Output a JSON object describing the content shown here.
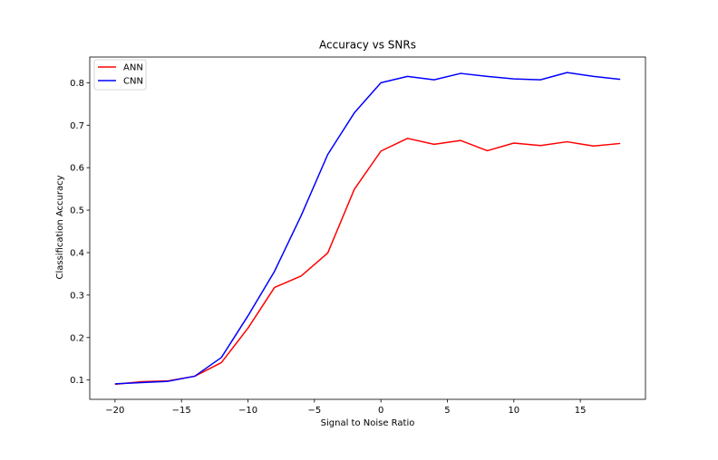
{
  "chart_data": {
    "type": "line",
    "title": "Accuracy vs SNRs",
    "xlabel": "Signal to Noise Ratio",
    "ylabel": "Classification Accuracy",
    "xlim": [
      -21.9,
      19.9
    ],
    "ylim": [
      0.0545,
      0.8605
    ],
    "xticks": [
      -20,
      -15,
      -10,
      -5,
      0,
      5,
      10,
      15
    ],
    "xtick_labels": [
      "−20",
      "−15",
      "−10",
      "−5",
      "0",
      "5",
      "10",
      "15"
    ],
    "yticks": [
      0.1,
      0.2,
      0.3,
      0.4,
      0.5,
      0.6,
      0.7,
      0.8
    ],
    "ytick_labels": [
      "0.1",
      "0.2",
      "0.3",
      "0.4",
      "0.5",
      "0.6",
      "0.7",
      "0.8"
    ],
    "grid": false,
    "legend_position": "top-left",
    "x": [
      -20,
      -18,
      -16,
      -14,
      -12,
      -10,
      -8,
      -6,
      -4,
      -2,
      0,
      2,
      4,
      6,
      8,
      10,
      12,
      14,
      16,
      18
    ],
    "series": [
      {
        "name": "ANN",
        "color": "#ff0000",
        "values": [
          0.09,
          0.096,
          0.098,
          0.109,
          0.141,
          0.222,
          0.318,
          0.345,
          0.399,
          0.549,
          0.639,
          0.669,
          0.655,
          0.664,
          0.64,
          0.658,
          0.652,
          0.661,
          0.651,
          0.657
        ]
      },
      {
        "name": "CNN",
        "color": "#0000ff",
        "values": [
          0.091,
          0.094,
          0.097,
          0.109,
          0.153,
          0.251,
          0.356,
          0.487,
          0.631,
          0.729,
          0.8,
          0.815,
          0.807,
          0.822,
          0.815,
          0.809,
          0.807,
          0.824,
          0.815,
          0.808
        ]
      }
    ]
  }
}
